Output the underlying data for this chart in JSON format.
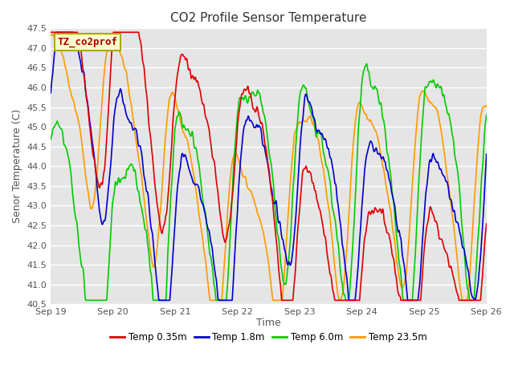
{
  "title": "CO2 Profile Sensor Temperature",
  "ylabel": "Senor Temperature (C)",
  "xlabel": "Time",
  "annotation_text": "TZ_co2prof",
  "annotation_color": "#aa0000",
  "annotation_bg": "#ffffcc",
  "annotation_border": "#aaaa00",
  "ylim": [
    40.5,
    47.5
  ],
  "xtick_labels": [
    "Sep 19",
    "Sep 20",
    "Sep 21",
    "Sep 22",
    "Sep 23",
    "Sep 24",
    "Sep 25",
    "Sep 26"
  ],
  "xtick_positions": [
    0,
    1,
    2,
    3,
    4,
    5,
    6,
    7
  ],
  "ytick_positions": [
    40.5,
    41.0,
    41.5,
    42.0,
    42.5,
    43.0,
    43.5,
    44.0,
    44.5,
    45.0,
    45.5,
    46.0,
    46.5,
    47.0,
    47.5
  ],
  "bg_color": "#e5e5e5",
  "grid_color": "#ffffff",
  "line_colors": [
    "#dd0000",
    "#0000cc",
    "#00cc00",
    "#ff9900"
  ],
  "line_labels": [
    "Temp 0.35m",
    "Temp 1.8m",
    "Temp 6.0m",
    "Temp 23.5m"
  ],
  "line_width": 1.2,
  "title_fontsize": 11,
  "axis_fontsize": 9,
  "tick_fontsize": 8
}
